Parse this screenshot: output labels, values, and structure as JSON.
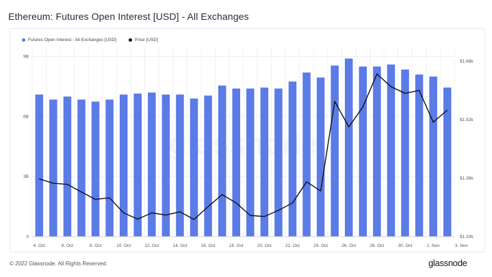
{
  "title": "Ethereum: Futures Open Interest [USD] - All Exchanges",
  "legend": [
    {
      "label": "Futures Open Interest - All Exchanges [USD]",
      "color": "#5b7be6"
    },
    {
      "label": "Price [USD]",
      "color": "#111111"
    }
  ],
  "footer": "© 2022 Glassnode. All Rights Reserved.",
  "brand": "glassnode",
  "watermark": "glassnode",
  "chart_data": {
    "type": "bar",
    "title": "Ethereum: Futures Open Interest [USD] - All Exchanges",
    "x_ticks": [
      "4. Oct",
      "6. Oct",
      "8. Oct",
      "10. Oct",
      "12. Oct",
      "14. Oct",
      "16. Oct",
      "18. Oct",
      "20. Oct",
      "22. Oct",
      "24. Oct",
      "26. Oct",
      "28. Oct",
      "30. Oct",
      "1. Nov",
      "3. Nov"
    ],
    "y_left": {
      "ticks": [
        0,
        3,
        6,
        9
      ],
      "labels": [
        "0",
        "3B",
        "6B",
        "9B"
      ],
      "ylim": [
        0,
        9.5
      ],
      "unit": "B USD"
    },
    "y_right": {
      "ticks": [
        1.2,
        1.36,
        1.52,
        1.68
      ],
      "labels": [
        "$1.20k",
        "$1.36k",
        "$1.52k",
        "$1.68k"
      ],
      "ylim": [
        1.2,
        1.72
      ],
      "unit": "k USD"
    },
    "series": [
      {
        "name": "Futures Open Interest - All Exchanges [USD]",
        "type": "bar",
        "axis": "left",
        "color": "#5b7be6",
        "values": [
          7.1,
          6.85,
          7.0,
          6.85,
          6.75,
          6.85,
          7.1,
          7.15,
          7.2,
          7.1,
          7.1,
          6.9,
          7.05,
          7.55,
          7.4,
          7.4,
          7.45,
          7.4,
          7.75,
          8.2,
          7.95,
          8.55,
          8.9,
          8.5,
          8.5,
          8.6,
          8.35,
          8.1,
          8.0,
          7.45
        ]
      },
      {
        "name": "Price [USD]",
        "type": "line",
        "axis": "right",
        "color": "#111111",
        "values": [
          1.358,
          1.346,
          1.343,
          1.322,
          1.302,
          1.306,
          1.265,
          1.248,
          1.265,
          1.259,
          1.268,
          1.247,
          1.282,
          1.315,
          1.292,
          1.258,
          1.255,
          1.272,
          1.292,
          1.35,
          1.325,
          1.57,
          1.5,
          1.555,
          1.645,
          1.61,
          1.592,
          1.6,
          1.513,
          1.546
        ]
      }
    ]
  }
}
